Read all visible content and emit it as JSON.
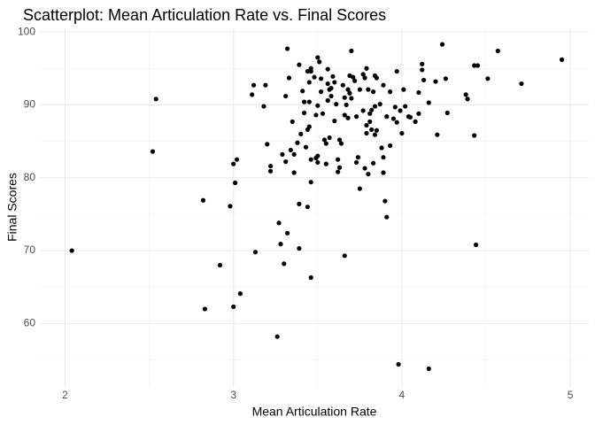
{
  "chart_data": {
    "type": "scatter",
    "title": "Scatterplot: Mean Articulation Rate vs. Final Scores",
    "x_label": "Mean Articulation Rate",
    "y_label": "Final Scores",
    "color": "#000000",
    "grid": true,
    "xlim": [
      1.85,
      5.11
    ],
    "xticks": [
      2,
      3,
      4,
      5
    ],
    "ylim": [
      51.3,
      100.5
    ],
    "yticks": [
      60,
      70,
      80,
      90,
      100
    ],
    "x": [
      2.04,
      2.52,
      2.54,
      2.82,
      2.83,
      2.92,
      2.98,
      3.0,
      3.0,
      3.02,
      3.01,
      3.04,
      3.11,
      3.12,
      3.13,
      3.18,
      3.19,
      3.2,
      3.22,
      3.22,
      3.26,
      3.27,
      3.28,
      3.29,
      3.3,
      3.31,
      3.32,
      3.31,
      3.32,
      3.33,
      3.34,
      3.35,
      3.36,
      3.36,
      3.38,
      3.39,
      3.39,
      3.39,
      3.4,
      3.41,
      3.42,
      3.42,
      3.43,
      3.44,
      3.44,
      3.44,
      3.45,
      3.45,
      3.45,
      3.46,
      3.46,
      3.46,
      3.46,
      3.46,
      3.48,
      3.49,
      3.49,
      3.5,
      3.5,
      3.5,
      3.5,
      3.51,
      3.52,
      3.52,
      3.53,
      3.54,
      3.55,
      3.55,
      3.56,
      3.56,
      3.56,
      3.57,
      3.57,
      3.58,
      3.58,
      3.59,
      3.6,
      3.6,
      3.61,
      3.62,
      3.62,
      3.63,
      3.63,
      3.64,
      3.65,
      3.66,
      3.66,
      3.66,
      3.67,
      3.68,
      3.68,
      3.69,
      3.69,
      3.7,
      3.7,
      3.71,
      3.72,
      3.73,
      3.73,
      3.74,
      3.75,
      3.75,
      3.77,
      3.77,
      3.78,
      3.78,
      3.79,
      3.79,
      3.79,
      3.8,
      3.8,
      3.81,
      3.81,
      3.82,
      3.82,
      3.83,
      3.83,
      3.84,
      3.84,
      3.84,
      3.85,
      3.85,
      3.87,
      3.88,
      3.89,
      3.89,
      3.89,
      3.9,
      3.91,
      3.91,
      3.93,
      3.93,
      3.95,
      3.96,
      3.97,
      3.97,
      3.98,
      3.99,
      4.0,
      4.01,
      4.02,
      4.04,
      4.05,
      4.08,
      4.1,
      4.1,
      4.12,
      4.12,
      4.13,
      4.16,
      4.16,
      4.2,
      4.21,
      4.24,
      4.26,
      4.27,
      4.38,
      4.39,
      4.43,
      4.43,
      4.45,
      4.44,
      4.51,
      4.57,
      4.71,
      4.95
    ],
    "y": [
      70.0,
      83.6,
      90.8,
      76.9,
      62.0,
      68.0,
      76.1,
      62.3,
      81.9,
      82.5,
      79.3,
      64.1,
      91.4,
      92.7,
      69.8,
      89.8,
      92.7,
      84.6,
      81.6,
      80.9,
      58.2,
      73.8,
      70.9,
      83.2,
      68.2,
      82.2,
      72.4,
      91.2,
      97.7,
      93.7,
      83.8,
      87.7,
      80.7,
      83.2,
      84.8,
      95.5,
      70.3,
      76.4,
      86.0,
      91.9,
      90.4,
      88.9,
      84.2,
      94.6,
      86.6,
      76.0,
      90.4,
      87.0,
      93.1,
      79.4,
      66.3,
      82.5,
      94.6,
      95.0,
      93.8,
      88.6,
      82.7,
      96.5,
      89.9,
      82.1,
      83.0,
      95.9,
      91.8,
      93.6,
      88.8,
      85.2,
      81.9,
      84.7,
      94.9,
      90.6,
      92.9,
      92.1,
      85.5,
      92.3,
      91.2,
      93.9,
      87.8,
      93.1,
      90.1,
      82.5,
      80.8,
      85.2,
      81.4,
      84.7,
      92.7,
      88.6,
      91.0,
      69.3,
      90.0,
      92.1,
      88.2,
      91.6,
      94.0,
      90.9,
      97.4,
      93.8,
      93.3,
      88.4,
      82.1,
      82.8,
      92.1,
      78.5,
      89.2,
      94.2,
      81.3,
      93.7,
      95.0,
      87.2,
      86.1,
      92.1,
      80.5,
      87.7,
      88.8,
      86.6,
      89.3,
      91.8,
      82.0,
      94.0,
      85.9,
      89.8,
      93.7,
      86.5,
      90.1,
      84.1,
      82.8,
      92.7,
      80.7,
      76.8,
      74.6,
      88.4,
      84.4,
      91.8,
      88.1,
      89.7,
      94.6,
      87.6,
      54.4,
      89.2,
      86.1,
      92.1,
      89.8,
      88.4,
      88.3,
      87.7,
      91.7,
      88.8,
      95.6,
      94.8,
      93.4,
      53.8,
      90.3,
      93.2,
      85.9,
      98.3,
      93.6,
      88.9,
      91.4,
      90.8,
      85.8,
      95.4,
      95.4,
      70.8,
      93.6,
      97.4,
      92.9,
      96.2
    ]
  }
}
